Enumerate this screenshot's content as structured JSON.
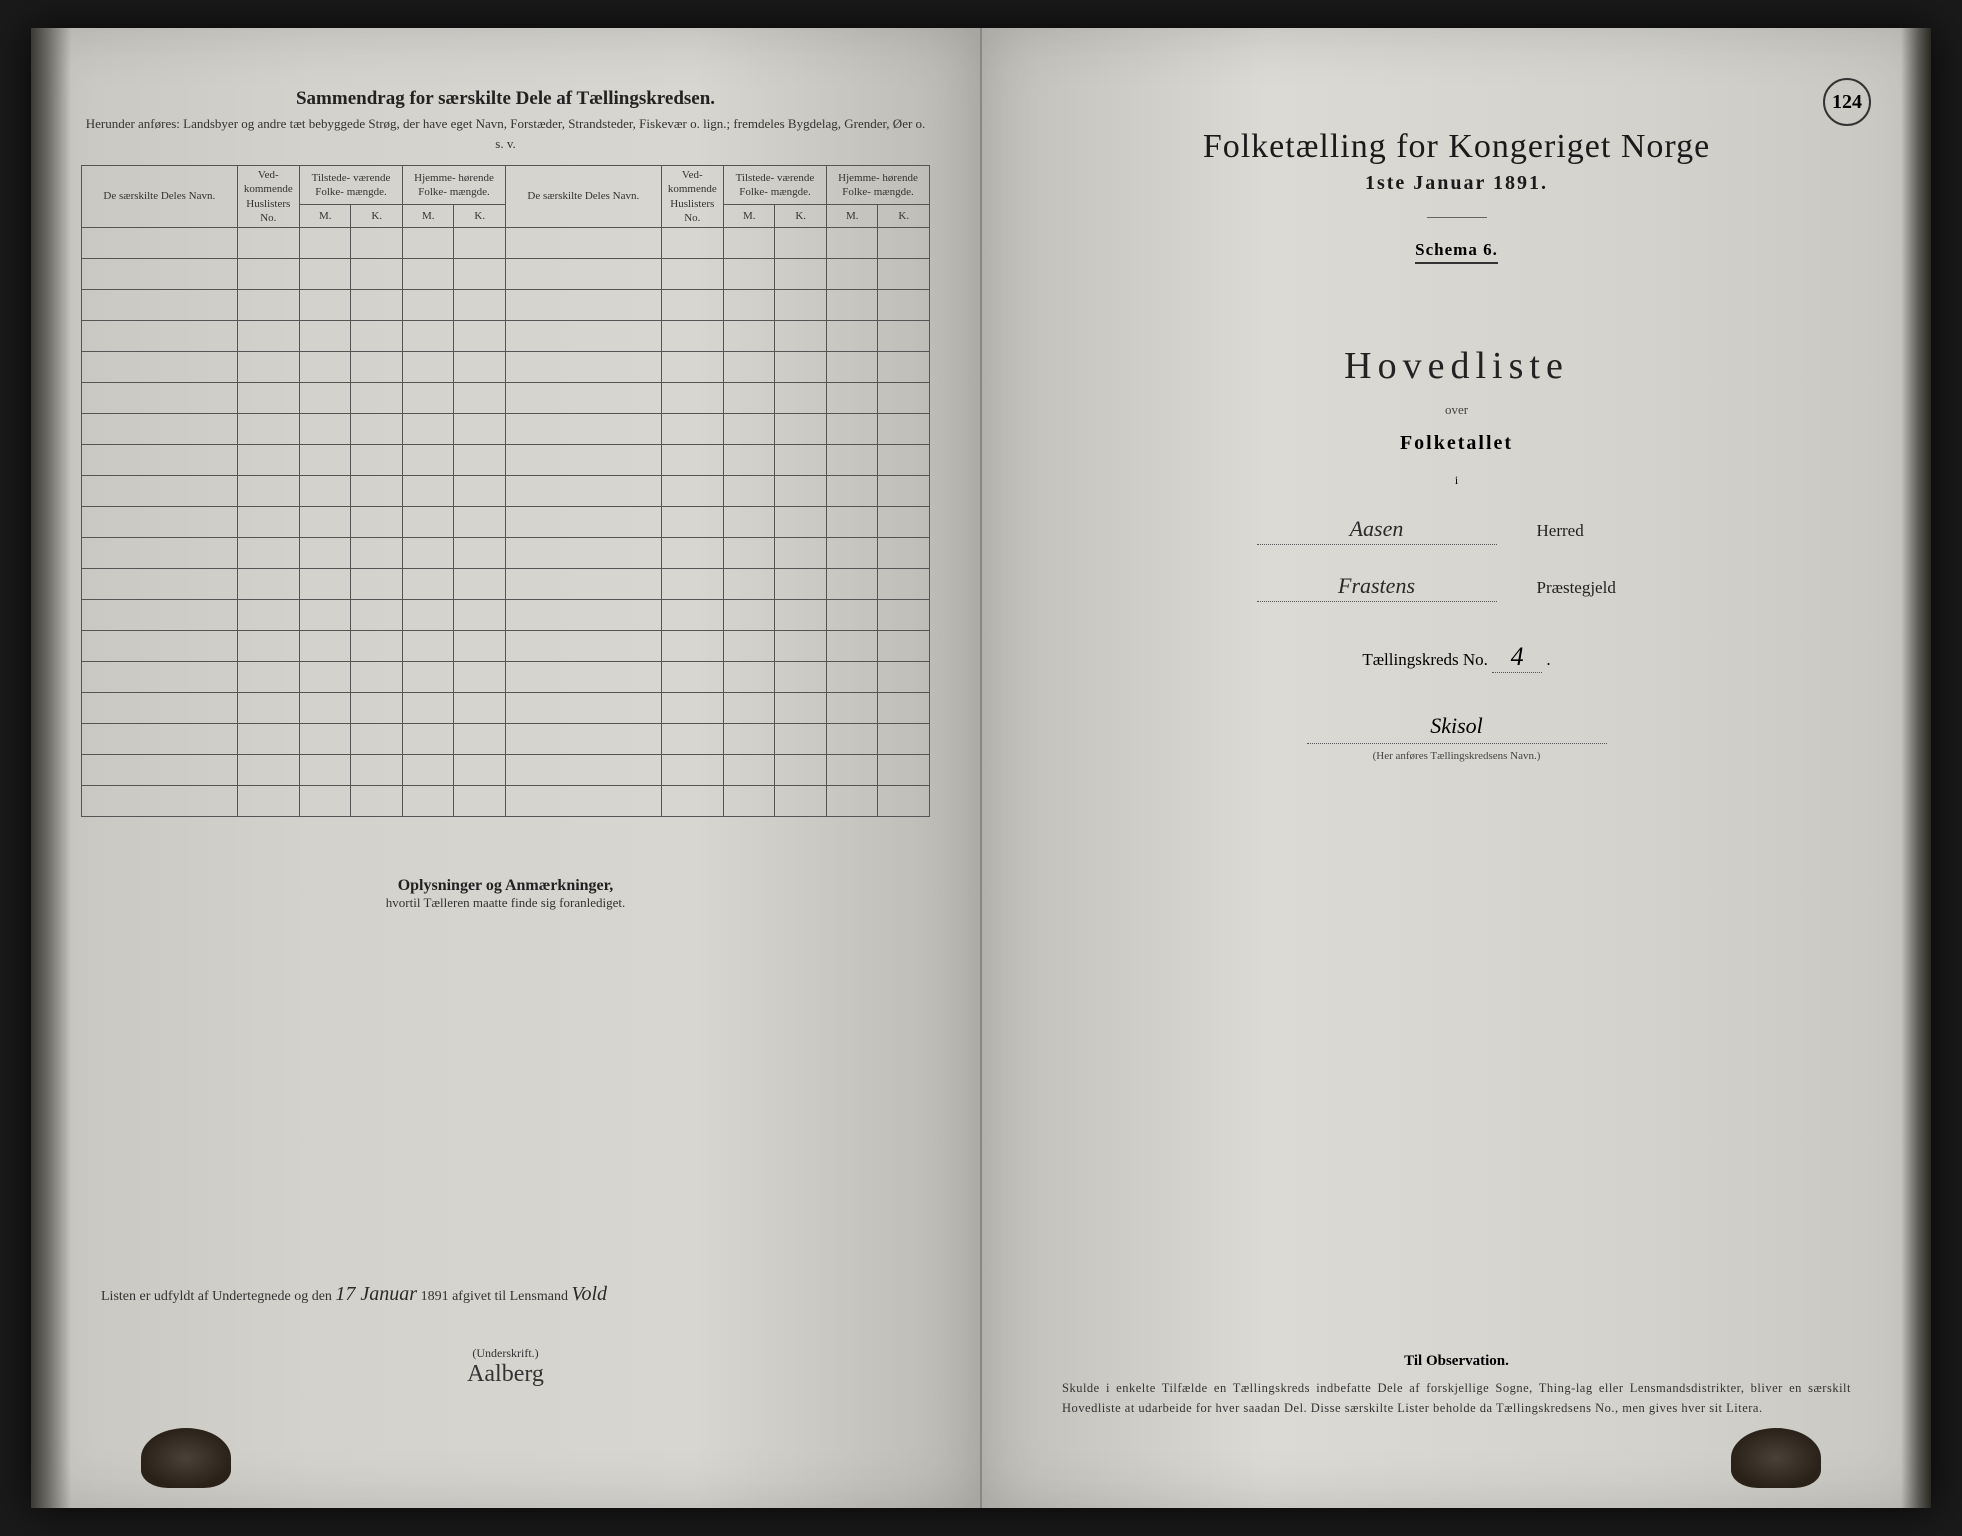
{
  "colors": {
    "page_bg": "#d8d6d0",
    "text_primary": "#1a1a1a",
    "text_secondary": "#333333",
    "border": "#555555",
    "handwriting": "#2a2a2a"
  },
  "page_number": "124",
  "left_page": {
    "title": "Sammendrag for særskilte Dele af Tællingskredsen.",
    "subtitle": "Herunder anføres: Landsbyer og andre tæt bebyggede Strøg, der have eget Navn, Forstæder, Strandsteder, Fiskevær o. lign.; fremdeles Bygdelag, Grender, Øer o. s. v.",
    "table": {
      "columns": {
        "name": "De særskilte Deles Navn.",
        "ved": "Ved-\nkommende\nHuslisters\nNo.",
        "tilstede": "Tilstede-\nværende\nFolke-\nmængde.",
        "hjemme": "Hjemme-\nhørende\nFolke-\nmængde.",
        "m": "M.",
        "k": "K."
      },
      "row_count": 19
    },
    "mid_title": "Oplysninger og Anmærkninger,",
    "mid_sub": "hvortil Tælleren maatte finde sig foranlediget.",
    "sig_prefix": "Listen er udfyldt af Undertegnede og den",
    "sig_date_hand": "17 Januar",
    "sig_year": "1891 afgivet til Lensmand",
    "sig_lensmand": "Vold",
    "underskrift_label": "(Underskrift.)",
    "underskrift_name": "Aalberg"
  },
  "right_page": {
    "main_title": "Folketælling for Kongeriget Norge",
    "main_date": "1ste Januar 1891.",
    "schema": "Schema 6.",
    "hovedliste": "Hovedliste",
    "over": "over",
    "folketallet": "Folketallet",
    "i": "i",
    "herred_value": "Aasen",
    "herred_label": "Herred",
    "praestegjeld_value": "Frastens",
    "praestegjeld_label": "Præstegjeld",
    "kreds_label": "Tællingskreds No.",
    "kreds_no": "4",
    "kreds_name": "Skisol",
    "kreds_note": "(Her anføres Tællingskredsens Navn.)",
    "obs_title": "Til Observation.",
    "obs_text": "Skulde i enkelte Tilfælde en Tællingskreds indbefatte Dele af forskjellige Sogne, Thing-lag eller Lensmandsdistrikter, bliver en særskilt Hovedliste at udarbeide for hver saadan Del. Disse særskilte Lister beholde da Tællingskredsens No., men gives hver sit Litera."
  }
}
